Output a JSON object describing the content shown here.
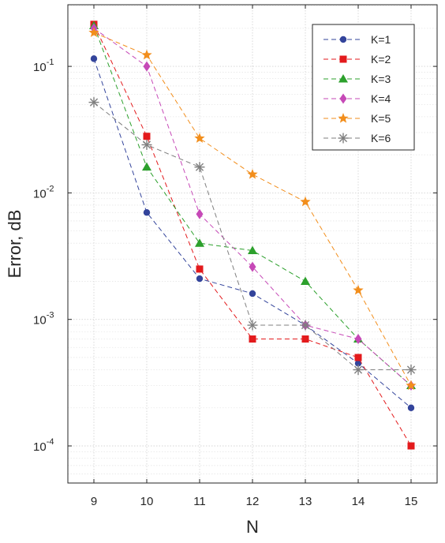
{
  "chart_data": {
    "type": "line",
    "xlabel": "N",
    "ylabel": "Error, dB",
    "x": [
      9,
      10,
      11,
      12,
      13,
      14,
      15
    ],
    "xlim": [
      8.5,
      15.5
    ],
    "ylim": [
      5e-05,
      0.25
    ],
    "yscale": "log",
    "y_ticks": [
      {
        "value": 0.0001,
        "base": "10",
        "exp": "-4"
      },
      {
        "value": 0.001,
        "base": "10",
        "exp": "-3"
      },
      {
        "value": 0.01,
        "base": "10",
        "exp": "-2"
      },
      {
        "value": 0.1,
        "base": "10",
        "exp": "-1"
      }
    ],
    "x_ticks": [
      "9",
      "10",
      "11",
      "12",
      "13",
      "14",
      "15"
    ],
    "grid": true,
    "legend_position": "top-right",
    "series": [
      {
        "name": "K=1",
        "color": "#33449b",
        "marker": "circle",
        "values": [
          0.115,
          0.007,
          0.0021,
          0.0016,
          0.0009,
          0.00045,
          0.0002
        ]
      },
      {
        "name": "K=2",
        "color": "#e31a1c",
        "marker": "square",
        "values": [
          0.215,
          0.028,
          0.0025,
          0.0007,
          0.0007,
          0.0005,
          0.0001
        ]
      },
      {
        "name": "K=3",
        "color": "#2ca02c",
        "marker": "triangle",
        "values": [
          0.21,
          0.016,
          0.004,
          0.0035,
          0.002,
          0.0007,
          0.0003
        ]
      },
      {
        "name": "K=4",
        "color": "#c649b7",
        "marker": "diamond",
        "values": [
          0.2,
          0.1,
          0.0068,
          0.0026,
          0.0009,
          0.0007,
          0.0003
        ]
      },
      {
        "name": "K=5",
        "color": "#f28e1c",
        "marker": "star",
        "values": [
          0.185,
          0.123,
          0.027,
          0.014,
          0.0085,
          0.0017,
          0.0003
        ]
      },
      {
        "name": "K=6",
        "color": "#7f7f7f",
        "marker": "asterisk",
        "values": [
          0.052,
          0.024,
          0.016,
          0.0009,
          0.0009,
          0.0004,
          0.0004
        ]
      }
    ]
  }
}
